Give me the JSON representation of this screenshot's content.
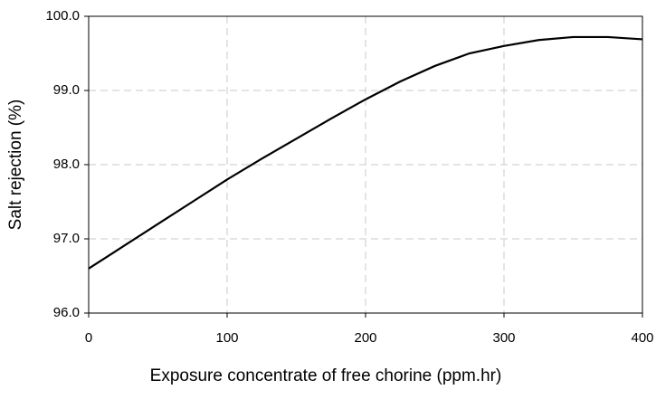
{
  "chart_data": {
    "type": "line",
    "x_label": "Exposure concentrate of free chorine (ppm.hr)",
    "y_label": "Salt rejection (%)",
    "x": [
      0,
      25,
      50,
      75,
      100,
      125,
      150,
      175,
      200,
      225,
      250,
      275,
      300,
      325,
      350,
      375,
      400
    ],
    "series": [
      {
        "color": "#000000",
        "values": [
          96.6,
          96.9,
          97.2,
          97.5,
          97.8,
          98.08,
          98.35,
          98.62,
          98.88,
          99.12,
          99.33,
          99.5,
          99.6,
          99.68,
          99.72,
          99.72,
          99.69
        ]
      }
    ],
    "xlim": [
      0,
      400
    ],
    "xticks": [
      0,
      100,
      200,
      300,
      400
    ],
    "ylim": [
      96,
      100
    ],
    "yticks": [
      {
        "value": 96,
        "label": "96.0"
      },
      {
        "value": 97,
        "label": "97.0"
      },
      {
        "value": 98,
        "label": "98.0"
      },
      {
        "value": 99,
        "label": "99.0"
      },
      {
        "value": 100,
        "label": "100.0"
      }
    ],
    "grid": true
  }
}
